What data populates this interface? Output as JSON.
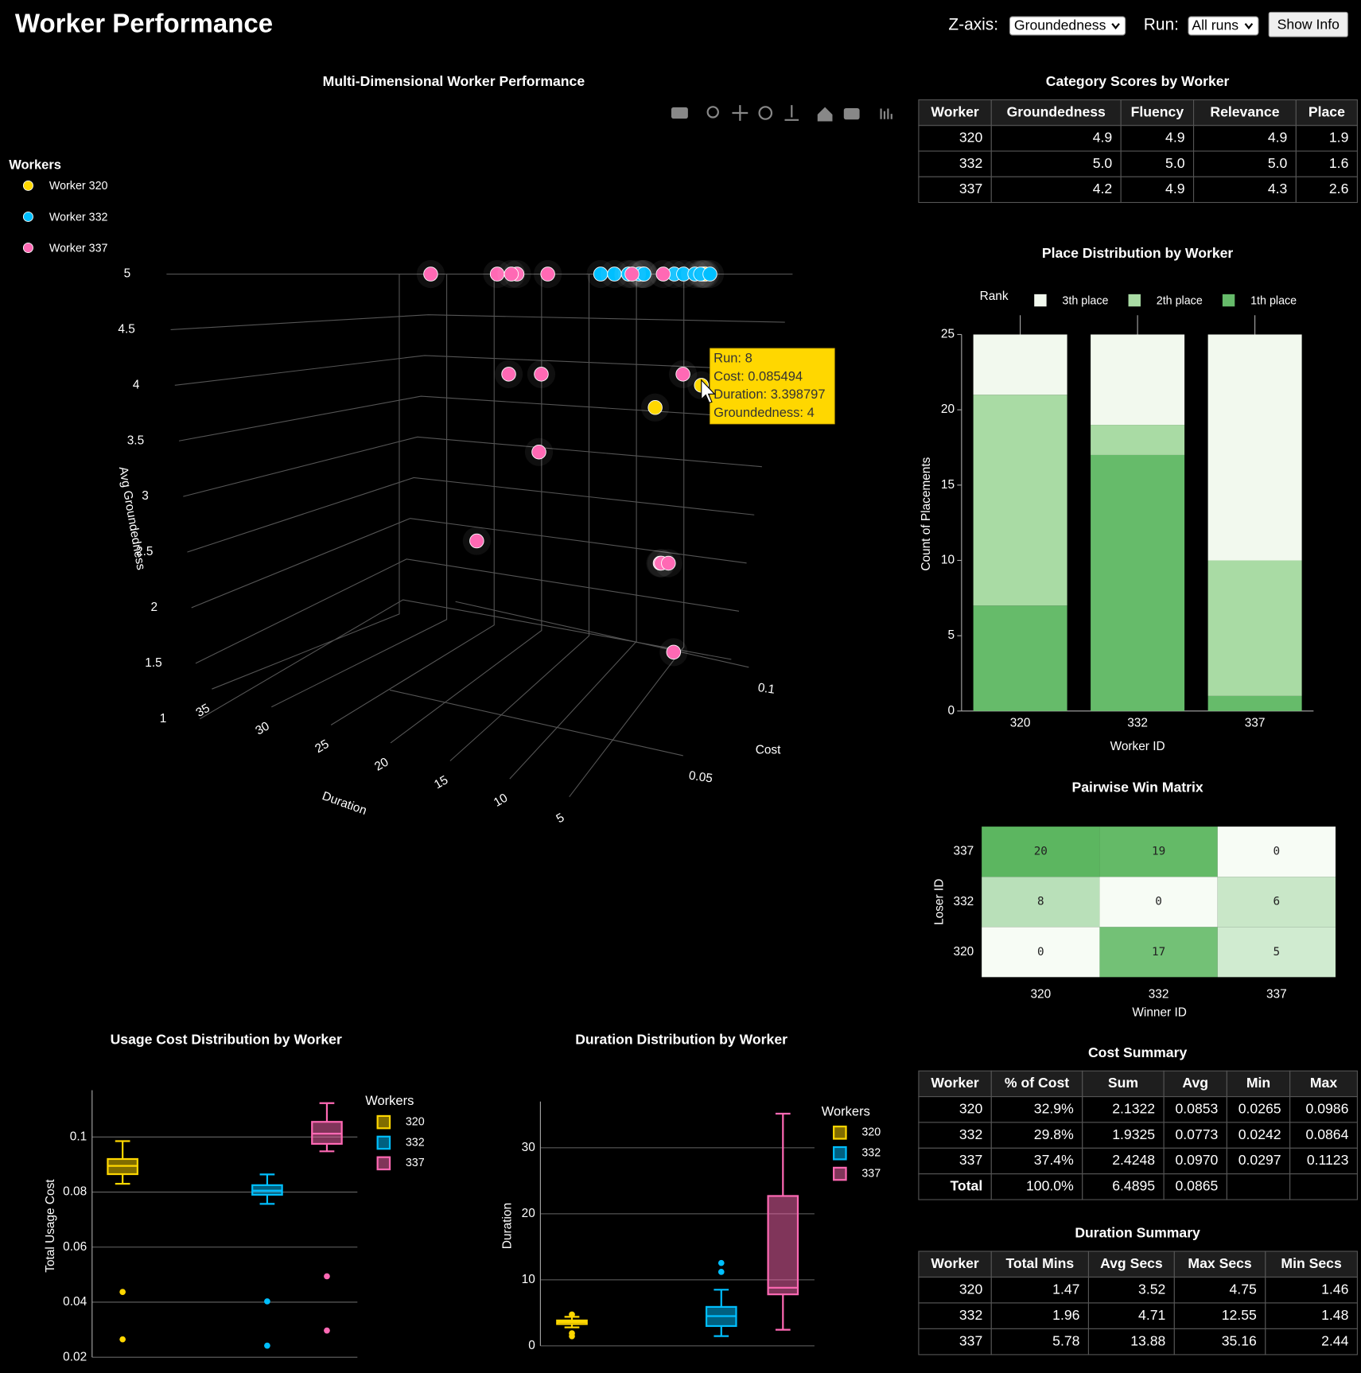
{
  "header": {
    "title": "Worker Performance",
    "controls": [
      {
        "label": "Z-axis:",
        "value": "Groundedness"
      },
      {
        "label": "Run:",
        "value": "All runs"
      }
    ],
    "button": "Show Info"
  },
  "chart_data": [
    {
      "type": "scatter3d",
      "title": "Multi-Dimensional Worker Performance",
      "legend_title": "Workers",
      "xlabel": "Duration",
      "ylabel": "Cost",
      "zlabel": "Avg Groundedness",
      "xlim": [
        0,
        36
      ],
      "ylim": [
        0.02,
        0.12
      ],
      "zlim": [
        1,
        5
      ],
      "xticks": [
        5,
        10,
        15,
        20,
        25,
        30,
        35
      ],
      "yticks": [
        0.05,
        0.1
      ],
      "zticks": [
        1,
        1.5,
        2,
        2.5,
        3,
        3.5,
        4,
        4.5,
        5
      ],
      "series": [
        {
          "name": "Worker 320",
          "color": "#ffd700",
          "x": [
            3.4,
            2.5,
            1.46,
            3.9,
            3.5,
            4.75
          ],
          "y": [
            0.0855,
            0.0437,
            0.0265,
            0.09,
            0.088,
            0.0986
          ],
          "z": [
            4,
            3.8,
            5,
            5,
            5,
            5
          ]
        },
        {
          "name": "Worker 332",
          "color": "#00bfff",
          "x": [
            11.2,
            12.55,
            10.5,
            8.5,
            5.6,
            1.48,
            3.2,
            4.5,
            3.6,
            2.6,
            1.9
          ],
          "y": [
            0.066,
            0.0864,
            0.082,
            0.079,
            0.081,
            0.0242,
            0.0403,
            0.08,
            0.082,
            0.079,
            0.081
          ],
          "z": [
            5,
            5,
            5,
            5,
            5,
            5,
            5,
            5,
            5,
            5,
            5
          ]
        },
        {
          "name": "Worker 337",
          "color": "#ff69b4",
          "x": [
            35.16,
            26.3,
            25.2,
            24.7,
            21.6,
            24.7,
            22.0,
            7.7,
            21.7,
            28.7,
            10.2,
            9.4,
            8.8,
            8.4,
            2.44,
            3.0
          ],
          "y": [
            0.1123,
            0.098,
            0.105,
            0.097,
            0.102,
            0.095,
            0.1,
            0.103,
            0.096,
            0.1,
            0.104,
            0.099,
            0.1,
            0.101,
            0.0494,
            0.0297
          ],
          "z": [
            5,
            5,
            5,
            5,
            5,
            4.1,
            4.1,
            4.1,
            3.4,
            2.6,
            2.4,
            2.4,
            2.4,
            1.6,
            5,
            5
          ]
        }
      ],
      "hover": [
        "Run: 8",
        "Cost: 0.085494",
        "Duration: 3.398797",
        "Groundedness: 4"
      ]
    },
    {
      "type": "stacked_bar",
      "title": "Place Distribution by Worker",
      "categories": [
        "320",
        "332",
        "337"
      ],
      "xlabel": "Worker ID",
      "ylabel": "Count of Placements",
      "legend_title": "Rank",
      "series": [
        {
          "name": "3th place",
          "color": "#f2f9ee",
          "values": [
            4,
            6,
            15
          ]
        },
        {
          "name": "2th place",
          "color": "#a9dba4",
          "values": [
            14,
            2,
            9
          ]
        },
        {
          "name": "1th place",
          "color": "#66bb6a",
          "values": [
            7,
            17,
            1
          ]
        }
      ],
      "ylim": [
        0,
        25
      ],
      "yticks": [
        0,
        5,
        10,
        15,
        20,
        25
      ]
    },
    {
      "type": "heatmap",
      "title": "Pairwise Win Matrix",
      "x": [
        "320",
        "332",
        "337"
      ],
      "y": [
        "320",
        "332",
        "337"
      ],
      "z": [
        [
          0,
          17,
          5
        ],
        [
          8,
          0,
          6
        ],
        [
          20,
          19,
          0
        ]
      ],
      "xlabel": "Winner ID",
      "ylabel": "Loser ID",
      "colorscale": [
        "#f7fcf5",
        "#5cb660"
      ]
    },
    {
      "type": "box",
      "title": "Usage Cost Distribution by Worker",
      "ylabel": "Total Usage Cost",
      "legend_title": "Workers",
      "ylim": [
        0.02,
        0.117
      ],
      "yticks": [
        0.02,
        0.04,
        0.06,
        0.08,
        0.1
      ],
      "series": [
        {
          "name": "320",
          "color": "#ffd700",
          "lowerfence": 0.083,
          "q1": 0.0865,
          "median": 0.0895,
          "q3": 0.092,
          "upperfence": 0.0985,
          "outliers": [
            0.0437,
            0.0265
          ]
        },
        {
          "name": "332",
          "color": "#00bfff",
          "lowerfence": 0.0757,
          "q1": 0.079,
          "median": 0.0805,
          "q3": 0.0825,
          "upperfence": 0.0864,
          "outliers": [
            0.0403,
            0.0242
          ]
        },
        {
          "name": "337",
          "color": "#ff69b4",
          "lowerfence": 0.0948,
          "q1": 0.0975,
          "median": 0.1012,
          "q3": 0.1055,
          "upperfence": 0.1123,
          "outliers": [
            0.0494,
            0.0297
          ]
        }
      ]
    },
    {
      "type": "box",
      "title": "Duration Distribution by Worker",
      "ylabel": "Duration",
      "legend_title": "Workers",
      "ylim": [
        0,
        37
      ],
      "yticks": [
        0,
        10,
        20,
        30
      ],
      "series": [
        {
          "name": "320",
          "color": "#ffd700",
          "lowerfence": 2.8,
          "q1": 3.3,
          "median": 3.6,
          "q3": 3.85,
          "upperfence": 4.4,
          "outliers": [
            4.75,
            1.46,
            1.9
          ]
        },
        {
          "name": "332",
          "color": "#00bfff",
          "lowerfence": 1.48,
          "q1": 3.0,
          "median": 4.5,
          "q3": 5.9,
          "upperfence": 8.5,
          "outliers": [
            11.2,
            12.55
          ]
        },
        {
          "name": "337",
          "color": "#ff69b4",
          "lowerfence": 2.44,
          "q1": 7.8,
          "median": 8.8,
          "q3": 22.7,
          "upperfence": 35.16,
          "outliers": []
        }
      ]
    }
  ],
  "tables": [
    {
      "title": "Category Scores by Worker",
      "columns": [
        "Worker",
        "Groundedness",
        "Fluency",
        "Relevance",
        "Place"
      ],
      "rows": [
        [
          "320",
          "4.9",
          "4.9",
          "4.9",
          "1.9"
        ],
        [
          "332",
          "5.0",
          "5.0",
          "5.0",
          "1.6"
        ],
        [
          "337",
          "4.2",
          "4.9",
          "4.3",
          "2.6"
        ]
      ]
    },
    {
      "title": "Cost Summary",
      "columns": [
        "Worker",
        "% of Cost",
        "Sum",
        "Avg",
        "Min",
        "Max"
      ],
      "rows": [
        [
          "320",
          "32.9%",
          "2.1322",
          "0.0853",
          "0.0265",
          "0.0986"
        ],
        [
          "332",
          "29.8%",
          "1.9325",
          "0.0773",
          "0.0242",
          "0.0864"
        ],
        [
          "337",
          "37.4%",
          "2.4248",
          "0.0970",
          "0.0297",
          "0.1123"
        ],
        [
          "Total",
          "100.0%",
          "6.4895",
          "0.0865"
        ]
      ]
    },
    {
      "title": "Duration Summary",
      "columns": [
        "Worker",
        "Total Mins",
        "Avg Secs",
        "Max Secs",
        "Min Secs"
      ],
      "rows": [
        [
          "320",
          "1.47",
          "3.52",
          "4.75",
          "1.46"
        ],
        [
          "332",
          "1.96",
          "4.71",
          "12.55",
          "1.48"
        ],
        [
          "337",
          "5.78",
          "13.88",
          "35.16",
          "2.44"
        ]
      ]
    }
  ]
}
